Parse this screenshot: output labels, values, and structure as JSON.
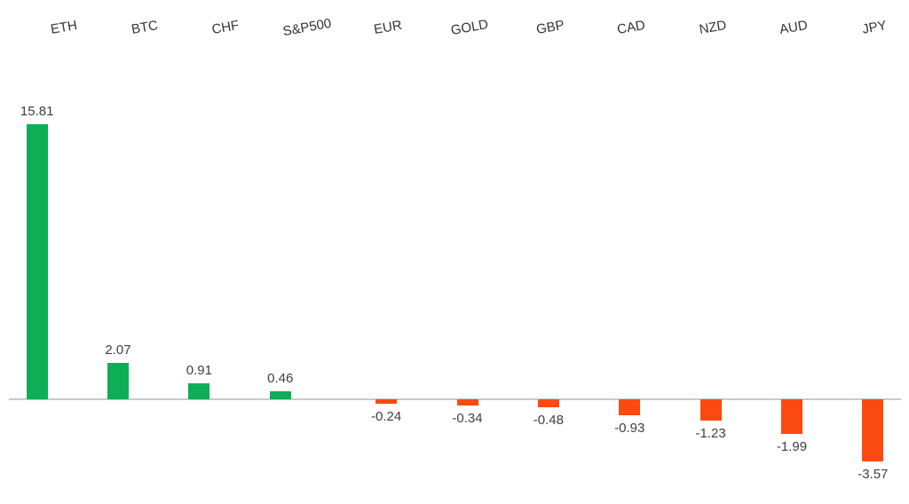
{
  "chart_data": {
    "type": "bar",
    "categories": [
      "ETH",
      "BTC",
      "CHF",
      "S&P500",
      "EUR",
      "GOLD",
      "GBP",
      "CAD",
      "NZD",
      "AUD",
      "JPY"
    ],
    "values": [
      15.81,
      2.07,
      0.91,
      0.46,
      -0.24,
      -0.34,
      -0.48,
      -0.93,
      -1.23,
      -1.99,
      -3.57
    ],
    "value_labels": [
      "15.81",
      "2.07",
      "0.91",
      "0.46",
      "-0.24",
      "-0.34",
      "-0.48",
      "-0.93",
      "-1.23",
      "-1.99",
      "-3.57"
    ],
    "title": "",
    "xlabel": "",
    "ylabel": "",
    "ylim": [
      -4,
      16
    ],
    "grid": false,
    "legend": false,
    "category_label_position": "top",
    "positive_color": "#0eae56",
    "negative_color": "#fa4a0f",
    "axis_line_color": "#c9c9c9",
    "value_label_color": "#404040",
    "category_label_color": "#333333"
  }
}
